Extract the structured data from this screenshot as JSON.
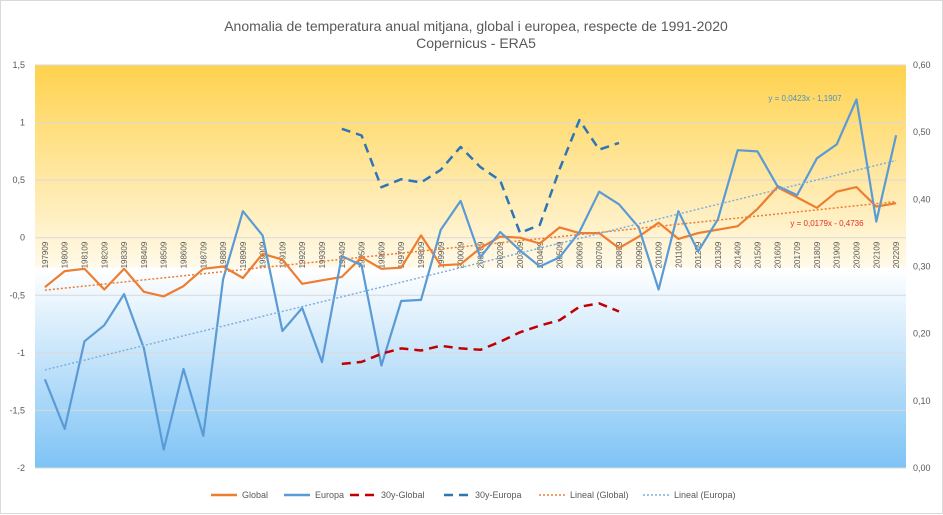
{
  "chart_data": {
    "type": "line",
    "title": "Anomalia de temperatura anual mitjana, global i europea, respecte de 1991-2020",
    "subtitle": "Copernicus - ERA5",
    "y_left": {
      "range": [
        -2,
        1.5
      ],
      "ticks": [
        "1,5",
        "1",
        "0,5",
        "0",
        "-0,5",
        "-1",
        "-1,5",
        "-2"
      ],
      "tick_values": [
        1.5,
        1,
        0.5,
        0,
        -0.5,
        -1,
        -1.5,
        -2
      ]
    },
    "y_right": {
      "range": [
        0,
        0.6
      ],
      "ticks": [
        "0,60",
        "0,50",
        "0,40",
        "0,30",
        "0,20",
        "0,10",
        "0,00"
      ],
      "tick_values": [
        0.6,
        0.5,
        0.4,
        0.3,
        0.2,
        0.1,
        0.0
      ]
    },
    "x_labels": [
      "197909",
      "198009",
      "198109",
      "198209",
      "198309",
      "198409",
      "198509",
      "198609",
      "198709",
      "198809",
      "198909",
      "199009",
      "199109",
      "199209",
      "199309",
      "199409",
      "199509",
      "199609",
      "199709",
      "199809",
      "199909",
      "200009",
      "200109",
      "200209",
      "200309",
      "200409",
      "200509",
      "200609",
      "200709",
      "200809",
      "200909",
      "201009",
      "201109",
      "201209",
      "201309",
      "201409",
      "201509",
      "201609",
      "201709",
      "201809",
      "201909",
      "202009",
      "202109",
      "202209"
    ],
    "series": [
      {
        "name": "Global",
        "color": "#ed7d31",
        "style": "solid",
        "axis": "left",
        "values": [
          -0.43,
          -0.29,
          -0.27,
          -0.45,
          -0.27,
          -0.47,
          -0.51,
          -0.42,
          -0.27,
          -0.25,
          -0.35,
          -0.14,
          -0.19,
          -0.4,
          -0.37,
          -0.34,
          -0.17,
          -0.27,
          -0.26,
          0.02,
          -0.24,
          -0.23,
          -0.09,
          0.01,
          0.0,
          -0.05,
          0.09,
          0.04,
          0.04,
          -0.09,
          0.01,
          0.13,
          -0.01,
          0.04,
          0.07,
          0.1,
          0.25,
          0.44,
          0.35,
          0.26,
          0.4,
          0.44,
          0.27,
          0.3
        ]
      },
      {
        "name": "Europa",
        "color": "#5b9bd5",
        "style": "solid",
        "axis": "left",
        "values": [
          -1.23,
          -1.66,
          -0.9,
          -0.76,
          -0.49,
          -0.96,
          -1.84,
          -1.14,
          -1.72,
          -0.36,
          0.23,
          0.02,
          -0.81,
          -0.61,
          -1.08,
          -0.16,
          -0.24,
          -1.11,
          -0.55,
          -0.54,
          0.07,
          0.32,
          -0.17,
          0.05,
          -0.11,
          -0.25,
          -0.17,
          0.05,
          0.4,
          0.29,
          0.09,
          -0.45,
          0.23,
          -0.12,
          0.16,
          0.76,
          0.75,
          0.45,
          0.37,
          0.69,
          0.81,
          1.2,
          0.14,
          0.89
        ]
      },
      {
        "name": "30y-Global",
        "color": "#c00000",
        "style": "dashed",
        "axis": "right",
        "x_start": "199409",
        "values": [
          0.155,
          0.158,
          0.17,
          0.178,
          0.175,
          0.182,
          0.178,
          0.176,
          0.188,
          0.202,
          0.212,
          0.22,
          0.24,
          0.245,
          0.233
        ]
      },
      {
        "name": "30y-Europa",
        "color": "#2e75b6",
        "style": "dashed",
        "axis": "right",
        "x_start": "199409",
        "values": [
          0.505,
          0.495,
          0.418,
          0.43,
          0.425,
          0.444,
          0.478,
          0.448,
          0.428,
          0.35,
          0.362,
          0.445,
          0.518,
          0.474,
          0.484
        ]
      },
      {
        "name": "Lineal  (Global)",
        "color": "#ed7d31",
        "style": "dotted",
        "axis": "left",
        "trendline": true,
        "equation": "y = 0,0179x - 0,4736",
        "slope": 0.0179,
        "intercept": -0.4736
      },
      {
        "name": "Lineal  (Europa)",
        "color": "#7fb0dc",
        "style": "dotted",
        "axis": "left",
        "trendline": true,
        "equation": "y = 0,0423x - 1,1907",
        "slope": 0.0423,
        "intercept": -1.1907
      }
    ],
    "grid": true,
    "legend_position": "bottom"
  },
  "colors": {
    "background_top": "#ffd24d",
    "background_mid": "#ffffff",
    "background_bottom": "#7ec3f5",
    "gridline": "#d9d9d9",
    "text": "#595959"
  }
}
